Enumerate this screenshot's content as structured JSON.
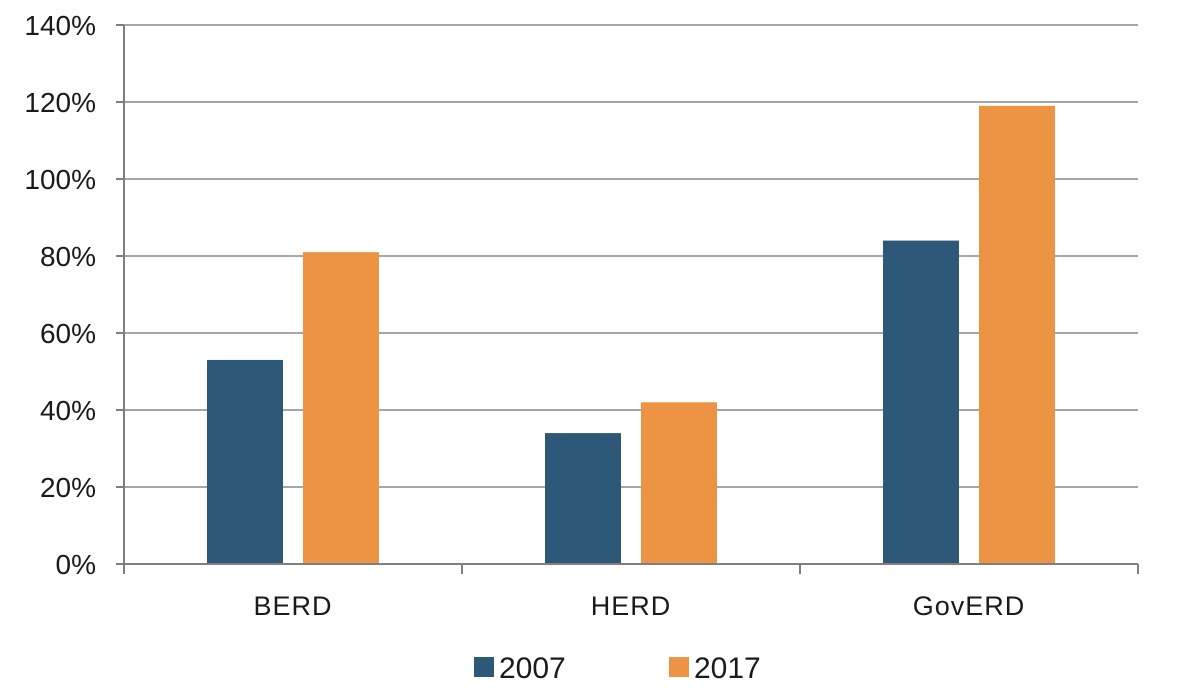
{
  "chart_data": {
    "type": "bar",
    "categories": [
      "BERD",
      "HERD",
      "GovERD"
    ],
    "series": [
      {
        "name": "2007",
        "values": [
          53,
          34,
          84
        ],
        "color": "#2e5877"
      },
      {
        "name": "2017",
        "values": [
          81,
          42,
          119
        ],
        "color": "#ec9444"
      }
    ],
    "ylim": [
      0,
      140
    ],
    "yticks": [
      0,
      20,
      40,
      60,
      80,
      100,
      120,
      140
    ],
    "ytick_labels": [
      "0%",
      "20%",
      "40%",
      "60%",
      "80%",
      "100%",
      "120%",
      "140%"
    ],
    "grid": true,
    "legend": "bottom-center",
    "gridline_color": "#a6a6a6",
    "axis_color": "#7f7f7f"
  }
}
